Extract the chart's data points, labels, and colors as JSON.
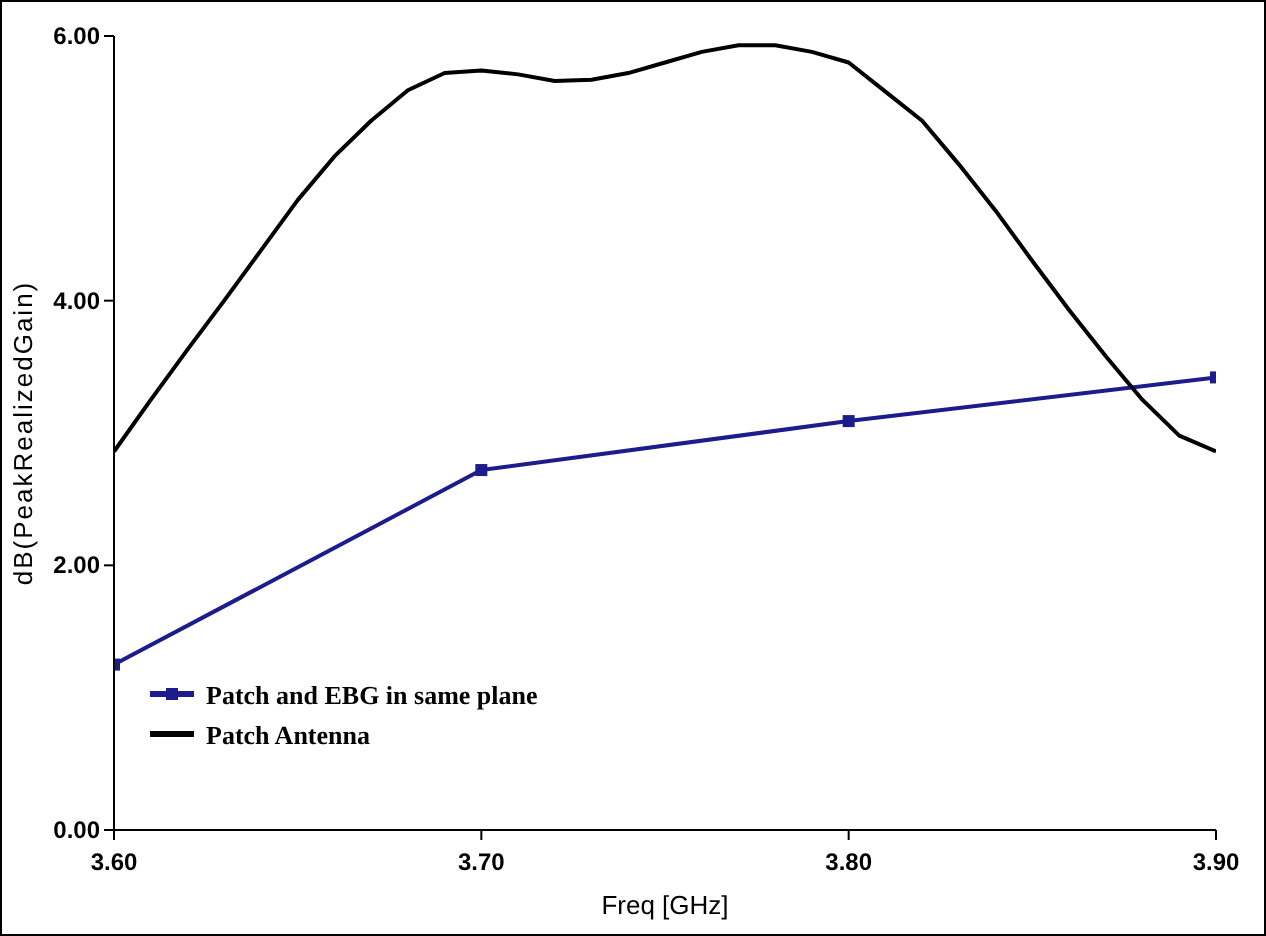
{
  "chart_data": {
    "type": "line",
    "xlabel": "Freq [GHz]",
    "ylabel": "dB(PeakRealizedGain)",
    "xlim": [
      3.6,
      3.9
    ],
    "ylim": [
      0,
      6
    ],
    "xticks": [
      {
        "value": 3.6,
        "label": "3.60"
      },
      {
        "value": 3.7,
        "label": "3.70"
      },
      {
        "value": 3.8,
        "label": "3.80"
      },
      {
        "value": 3.9,
        "label": "3.90"
      }
    ],
    "yticks": [
      {
        "value": 0,
        "label": "0.00"
      },
      {
        "value": 2,
        "label": "2.00"
      },
      {
        "value": 4,
        "label": "4.00"
      },
      {
        "value": 6,
        "label": "6.00"
      }
    ],
    "legend": "bottom left",
    "grid": false,
    "series": [
      {
        "name": "Patch and EBG in same plane",
        "color": "#1c1c8c",
        "marker": "square",
        "x": [
          3.6,
          3.7,
          3.8,
          3.9
        ],
        "values": [
          1.25,
          2.72,
          3.09,
          3.42
        ]
      },
      {
        "name": "Patch Antenna",
        "color": "#000000",
        "marker": "none",
        "x": [
          3.6,
          3.61,
          3.62,
          3.63,
          3.64,
          3.65,
          3.66,
          3.67,
          3.68,
          3.69,
          3.7,
          3.71,
          3.72,
          3.73,
          3.74,
          3.75,
          3.76,
          3.77,
          3.78,
          3.79,
          3.8,
          3.81,
          3.82,
          3.83,
          3.84,
          3.85,
          3.86,
          3.87,
          3.88,
          3.89,
          3.9
        ],
        "values": [
          2.86,
          3.25,
          3.63,
          4.0,
          4.38,
          4.76,
          5.09,
          5.36,
          5.59,
          5.72,
          5.74,
          5.71,
          5.66,
          5.67,
          5.72,
          5.8,
          5.88,
          5.93,
          5.93,
          5.88,
          5.8,
          5.58,
          5.36,
          5.03,
          4.68,
          4.3,
          3.93,
          3.58,
          3.25,
          2.98,
          2.86
        ]
      }
    ]
  }
}
